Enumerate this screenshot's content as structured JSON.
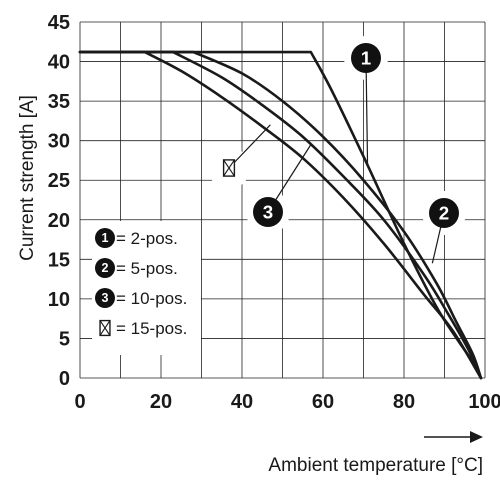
{
  "chart_data": {
    "type": "line",
    "title": "",
    "xlabel": "Ambient temperature [°C]",
    "ylabel": "Current strength [A]",
    "xlim": [
      0,
      100
    ],
    "ylim": [
      0,
      45
    ],
    "x_ticks": [
      "0",
      "20",
      "40",
      "60",
      "80",
      "100"
    ],
    "y_ticks": [
      "0",
      "5",
      "10",
      "15",
      "20",
      "25",
      "30",
      "35",
      "40",
      "45"
    ],
    "grid": true,
    "legend_position": "bottom-left",
    "series": [
      {
        "name": "2-pos.",
        "marker": "1",
        "x": [
          0,
          57,
          62,
          70,
          80,
          88,
          93,
          97,
          99
        ],
        "y": [
          41.2,
          41.2,
          36.5,
          28,
          17,
          9,
          5,
          2,
          0
        ]
      },
      {
        "name": "5-pos.",
        "marker": "2",
        "x": [
          0,
          28,
          40,
          50,
          60,
          70,
          80,
          88,
          93,
          97,
          99
        ],
        "y": [
          41.2,
          41.2,
          38.5,
          35,
          30.5,
          25,
          18.5,
          12,
          7,
          3,
          0
        ]
      },
      {
        "name": "10-pos.",
        "marker": "3",
        "x": [
          0,
          23,
          35,
          45,
          55,
          65,
          75,
          85,
          91,
          96,
          99
        ],
        "y": [
          41.2,
          41.2,
          38,
          34.5,
          30.5,
          25.5,
          20,
          13,
          8,
          3.5,
          0
        ]
      },
      {
        "name": "15-pos.",
        "marker": "⊠",
        "x": [
          0,
          16,
          25,
          35,
          45,
          55,
          65,
          75,
          85,
          92,
          99
        ],
        "y": [
          41.2,
          41.2,
          38.8,
          35.5,
          31.8,
          27.8,
          22.8,
          17,
          10.5,
          6,
          0
        ]
      }
    ],
    "legend": [
      {
        "marker": "1",
        "label": "= 2-pos."
      },
      {
        "marker": "2",
        "label": "= 5-pos."
      },
      {
        "marker": "3",
        "label": "= 10-pos."
      },
      {
        "marker": "⊠",
        "label": "= 15-pos."
      }
    ],
    "annotations": [
      {
        "marker": "1",
        "curve_x": 71,
        "curve_y": 27
      },
      {
        "marker": "2",
        "curve_x": 87,
        "curve_y": 14.5
      },
      {
        "marker": "3",
        "curve_x": 57,
        "curve_y": 29.5
      },
      {
        "marker": "⊠",
        "curve_x": 47,
        "curve_y": 32
      }
    ]
  }
}
